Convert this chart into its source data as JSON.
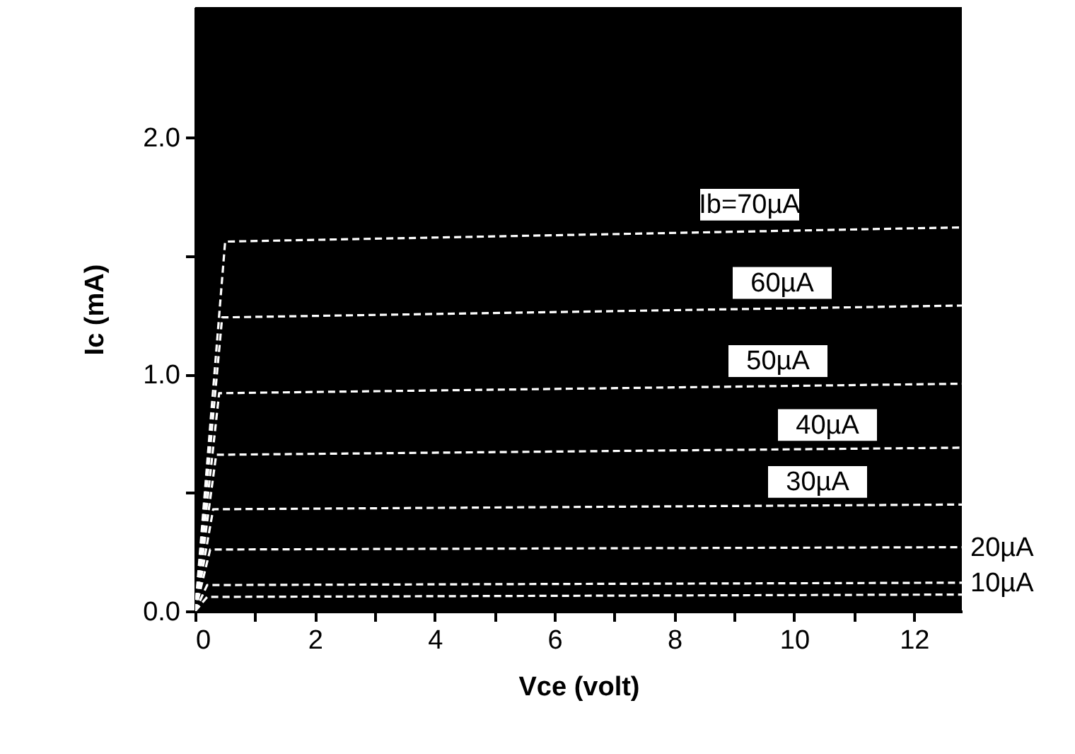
{
  "chart_data": {
    "type": "line",
    "xlabel": "Vce  (volt)",
    "ylabel": "Ic  (mA)",
    "xlim": [
      0,
      12.8
    ],
    "ylim": [
      0,
      2.55
    ],
    "xticks": [
      0,
      {
        "value": 1,
        "label": null
      },
      2,
      {
        "value": 3,
        "label": null
      },
      4,
      {
        "value": 5,
        "label": null
      },
      6,
      {
        "value": 7,
        "label": null
      },
      8,
      {
        "value": 9,
        "label": null
      },
      10,
      {
        "value": 11,
        "label": null
      },
      12
    ],
    "yticks": [
      {
        "value": 0,
        "label": "0.0"
      },
      {
        "value": 0.5,
        "label": null
      },
      {
        "value": 1,
        "label": "1.0"
      },
      {
        "value": 1.5,
        "label": null
      },
      {
        "value": 2,
        "label": "2.0"
      }
    ],
    "grid": false,
    "line_style": "dashed",
    "marker": "none",
    "series": [
      {
        "name": "Ib=70µA",
        "color": "#ffffff",
        "x": [
          0,
          0.5,
          12.8
        ],
        "values": [
          0,
          1.56,
          1.62
        ]
      },
      {
        "name": "60µA",
        "color": "#ffffff",
        "x": [
          0,
          0.45,
          12.8
        ],
        "values": [
          0,
          1.24,
          1.29
        ]
      },
      {
        "name": "50µA",
        "color": "#ffffff",
        "x": [
          0,
          0.4,
          12.8
        ],
        "values": [
          0,
          0.92,
          0.96
        ]
      },
      {
        "name": "40µA",
        "color": "#ffffff",
        "x": [
          0,
          0.35,
          12.8
        ],
        "values": [
          0,
          0.66,
          0.69
        ]
      },
      {
        "name": "30µA",
        "color": "#ffffff",
        "x": [
          0,
          0.3,
          12.8
        ],
        "values": [
          0,
          0.43,
          0.45
        ]
      },
      {
        "name": "20µA",
        "color": "#ffffff",
        "x": [
          0,
          0.25,
          12.8
        ],
        "values": [
          0,
          0.26,
          0.27
        ]
      },
      {
        "name": "10µA",
        "color": "#ffffff",
        "x": [
          0,
          0.2,
          12.8
        ],
        "values": [
          0,
          0.11,
          0.12
        ]
      },
      {
        "color": "#ffffff",
        "x": [
          0,
          0.2,
          12.8
        ],
        "values": [
          0,
          0.06,
          0.07
        ]
      }
    ]
  }
}
